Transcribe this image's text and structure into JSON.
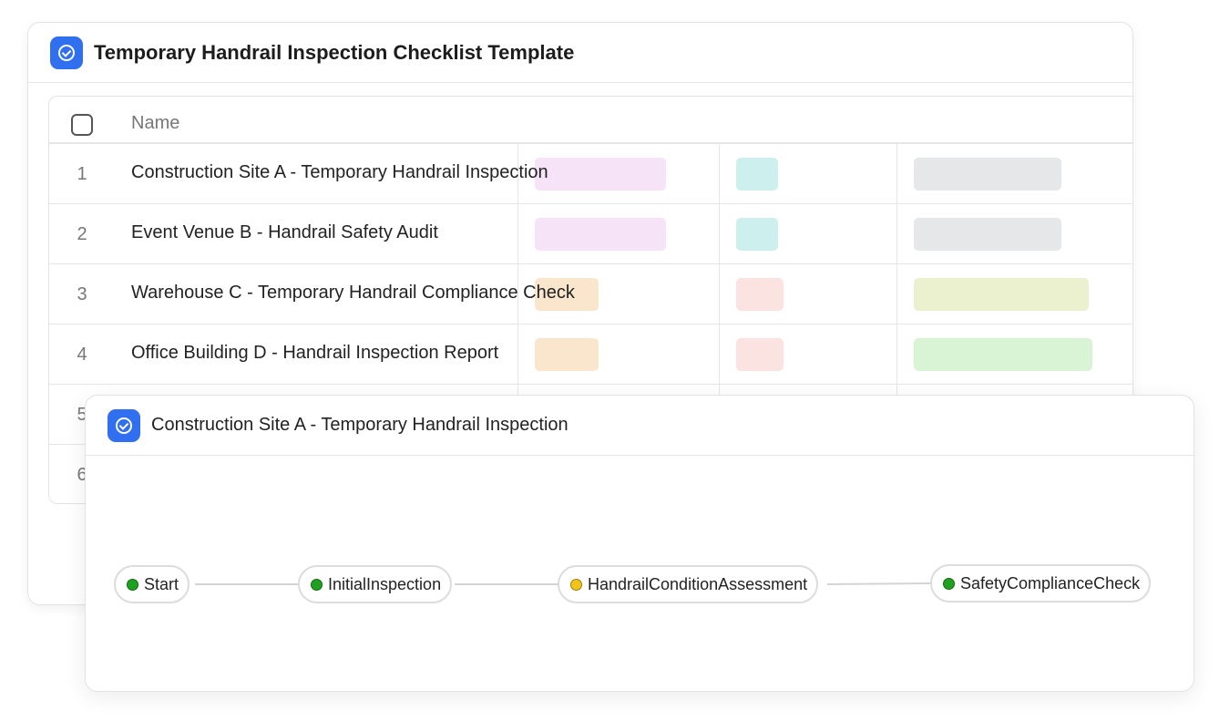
{
  "checklist": {
    "title": "Temporary Handrail Inspection Checklist Template",
    "header": {
      "name_label": "Name"
    },
    "rows": [
      {
        "num": "1",
        "name": "Construction Site A - Temporary Handrail Inspection"
      },
      {
        "num": "2",
        "name": "Event Venue B - Handrail Safety Audit"
      },
      {
        "num": "3",
        "name": "Warehouse C - Temporary Handrail Compliance Check"
      },
      {
        "num": "4",
        "name": "Office Building D - Handrail Inspection Report"
      },
      {
        "num": "5",
        "name": ""
      },
      {
        "num": "6",
        "name": ""
      }
    ],
    "tag_colors": {
      "pink": "#f6e3f7",
      "teal": "#cdf0ee",
      "gray": "#e6e7e9",
      "peach": "#fae6cc",
      "rose": "#fbe3e1",
      "olive": "#ebf1cf",
      "green": "#d9f4d4"
    }
  },
  "workflow": {
    "title": "Construction Site A - Temporary Handrail Inspection",
    "nodes": [
      {
        "label": "Start",
        "status": "green"
      },
      {
        "label": "InitialInspection",
        "status": "green"
      },
      {
        "label": "HandrailConditionAssessment",
        "status": "yellow"
      },
      {
        "label": "SafetyComplianceCheck",
        "status": "green"
      }
    ],
    "status_colors": {
      "green": "#1fa11f",
      "yellow": "#f2c417"
    }
  },
  "accent_color": "#2f6ff0"
}
